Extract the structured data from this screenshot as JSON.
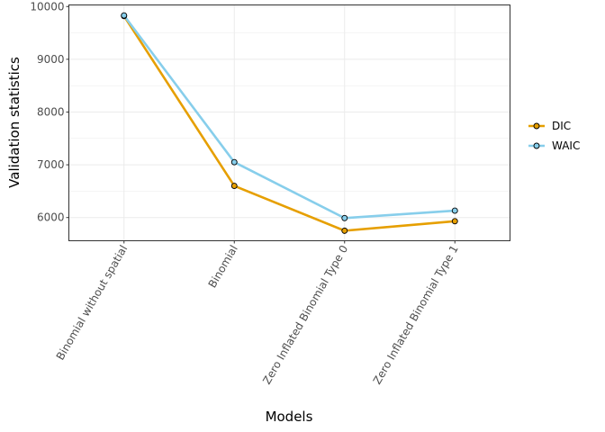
{
  "chart_data": {
    "type": "line",
    "xlabel": "Models",
    "ylabel": "Validation statistics",
    "categories": [
      "Binomial without spatial",
      "Binomial",
      "Zero Inflated Binomial Type 0",
      "Zero Inflated Binomial Type 1"
    ],
    "y_ticks": [
      "6000",
      "7000",
      "8000",
      "9000",
      "10000"
    ],
    "y_tick_values": [
      6000,
      7000,
      8000,
      9000,
      10000
    ],
    "ylim": [
      5560,
      10030
    ],
    "grid": true,
    "legend_position": "right",
    "series": [
      {
        "name": "DIC",
        "values": [
          9820,
          6600,
          5750,
          5930
        ],
        "color": "#E69F00"
      },
      {
        "name": "WAIC",
        "values": [
          9830,
          7050,
          5990,
          6130
        ],
        "color": "#87CEEB"
      }
    ]
  }
}
